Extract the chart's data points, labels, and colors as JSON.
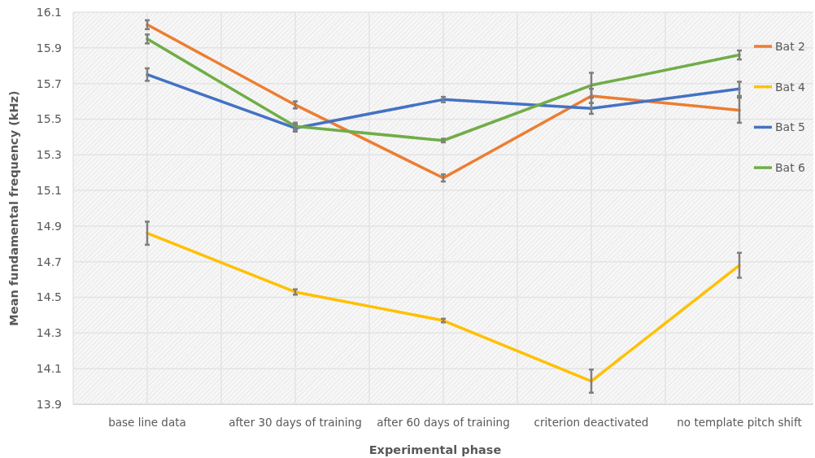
{
  "chart_data": {
    "type": "line",
    "xlabel": "Experimental phase",
    "ylabel": "Mean fundamental frequency (kHz)",
    "categories": [
      "base line data",
      "after 30 days of training",
      "after 60 days of training",
      "criterion deactivated",
      "no template pitch shift"
    ],
    "ylim": [
      13.9,
      16.1
    ],
    "yticks": [
      13.9,
      14.1,
      14.3,
      14.5,
      14.7,
      14.9,
      15.1,
      15.3,
      15.5,
      15.7,
      15.9,
      16.1
    ],
    "grid": true,
    "legend": "right",
    "series": [
      {
        "name": "Bat 2",
        "color": "#ed7d31",
        "values": [
          16.03,
          15.58,
          15.17,
          15.63,
          15.55
        ],
        "errors": [
          0.025,
          0.02,
          0.02,
          0.04,
          0.07
        ]
      },
      {
        "name": "Bat 4",
        "color": "#ffc000",
        "values": [
          14.86,
          14.53,
          14.37,
          14.03,
          14.68
        ],
        "errors": [
          0.065,
          0.015,
          0.01,
          0.065,
          0.07
        ]
      },
      {
        "name": "Bat 5",
        "color": "#4472c4",
        "values": [
          15.75,
          15.45,
          15.61,
          15.56,
          15.67
        ],
        "errors": [
          0.035,
          0.02,
          0.015,
          0.03,
          0.04
        ]
      },
      {
        "name": "Bat 6",
        "color": "#70ad47",
        "values": [
          15.95,
          15.46,
          15.38,
          15.69,
          15.86
        ],
        "errors": [
          0.025,
          0.02,
          0.01,
          0.07,
          0.025
        ]
      }
    ]
  }
}
